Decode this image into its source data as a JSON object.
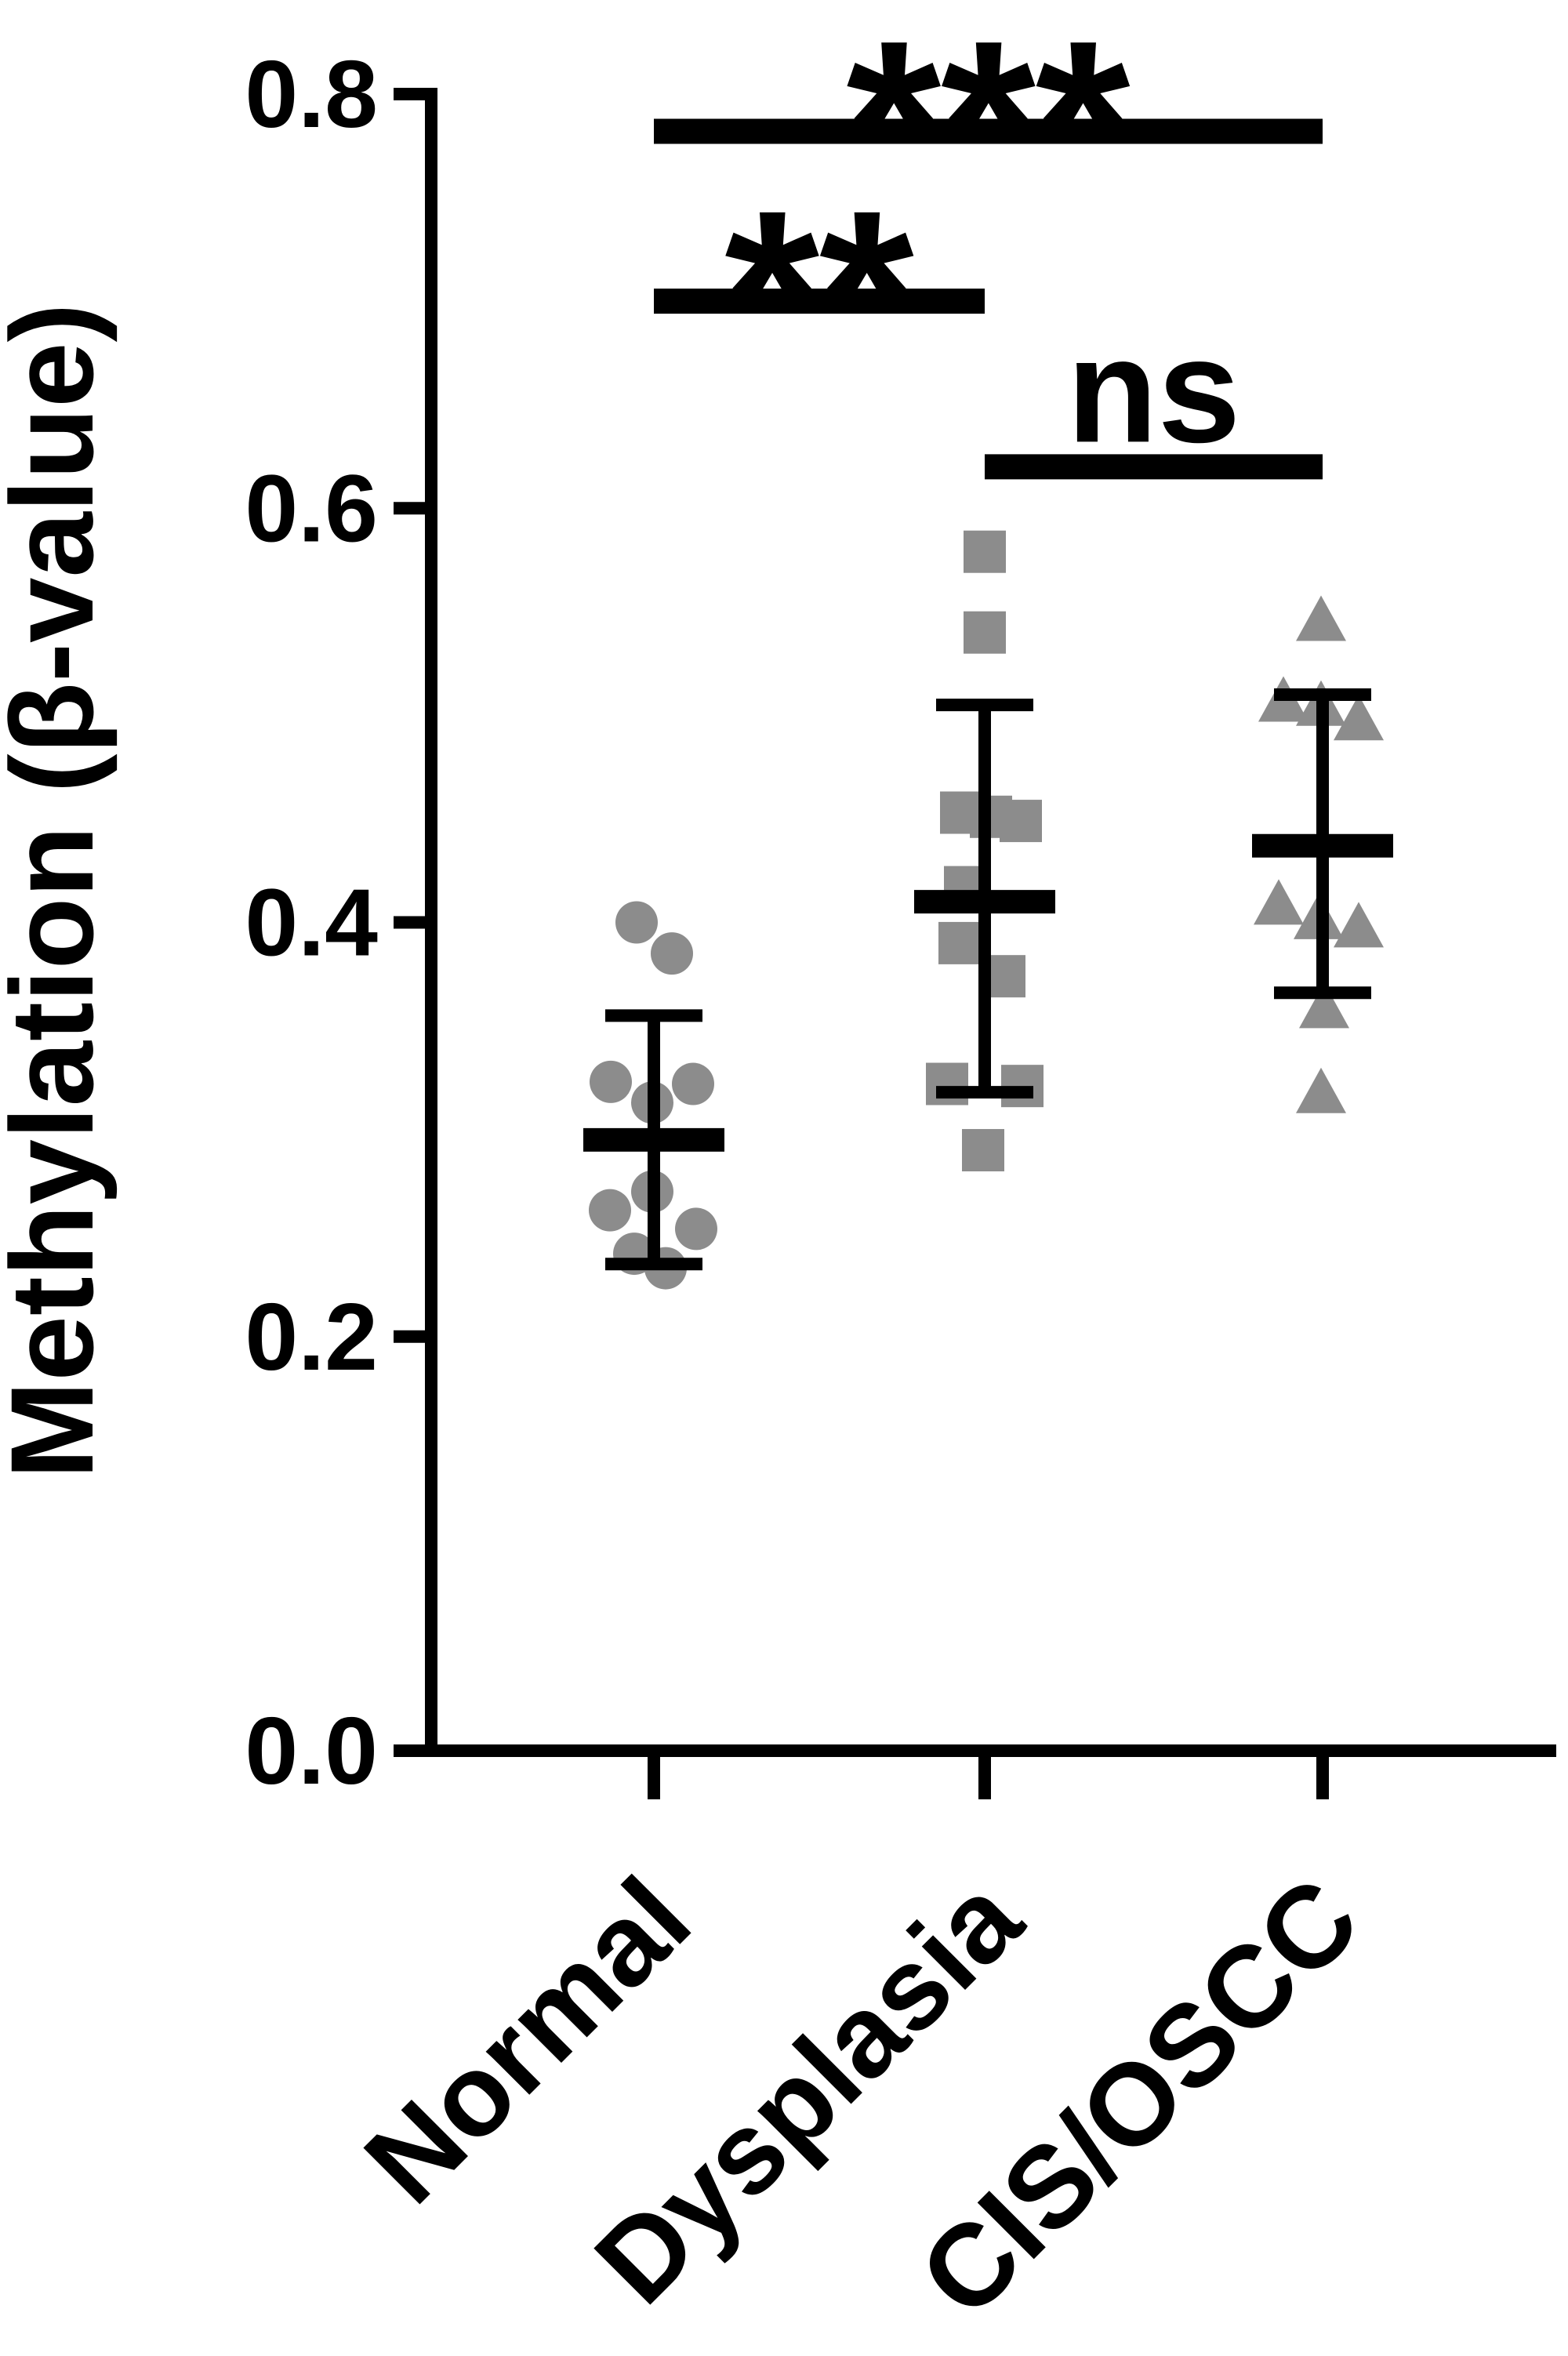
{
  "chart_data": {
    "type": "scatter",
    "title": "",
    "ylabel": "Methylation (β-value)",
    "xlabel": "",
    "ylim": [
      0.0,
      0.8
    ],
    "yticks": [
      0.0,
      0.2,
      0.4,
      0.6,
      0.8
    ],
    "ytick_format_decimals": 1,
    "categories": [
      "Normal",
      "Dysplasia",
      "CIS/OSCC"
    ],
    "legend": "none",
    "grid": false,
    "axis_color": "#000000",
    "marker_color": "#8c8c8c",
    "groups": [
      {
        "name": "Normal",
        "marker": "circle",
        "mean": 0.295,
        "sd_low": 0.235,
        "sd_high": 0.355,
        "points": [
          {
            "dx": -22,
            "v": 0.4
          },
          {
            "dx": 23,
            "v": 0.385
          },
          {
            "dx": -55,
            "v": 0.323
          },
          {
            "dx": 50,
            "v": 0.322
          },
          {
            "dx": -2,
            "v": 0.313
          },
          {
            "dx": -2,
            "v": 0.27
          },
          {
            "dx": -56,
            "v": 0.261
          },
          {
            "dx": 54,
            "v": 0.252
          },
          {
            "dx": -25,
            "v": 0.24
          },
          {
            "dx": 15,
            "v": 0.233
          }
        ]
      },
      {
        "name": "Dysplasia",
        "marker": "square",
        "mean": 0.41,
        "sd_low": 0.318,
        "sd_high": 0.505,
        "points": [
          {
            "dx": 0,
            "v": 0.579
          },
          {
            "dx": 0,
            "v": 0.54
          },
          {
            "dx": -30,
            "v": 0.453
          },
          {
            "dx": 8,
            "v": 0.451
          },
          {
            "dx": 46,
            "v": 0.449
          },
          {
            "dx": -25,
            "v": 0.417
          },
          {
            "dx": -32,
            "v": 0.39
          },
          {
            "dx": 25,
            "v": 0.374
          },
          {
            "dx": -48,
            "v": 0.322
          },
          {
            "dx": 48,
            "v": 0.321
          },
          {
            "dx": -2,
            "v": 0.29
          }
        ]
      },
      {
        "name": "CIS/OSCC",
        "marker": "triangle",
        "mean": 0.437,
        "sd_low": 0.366,
        "sd_high": 0.51,
        "points": [
          {
            "dx": -2,
            "v": 0.545
          },
          {
            "dx": -50,
            "v": 0.506
          },
          {
            "dx": -2,
            "v": 0.504
          },
          {
            "dx": 46,
            "v": 0.497
          },
          {
            "dx": -56,
            "v": 0.408
          },
          {
            "dx": -5,
            "v": 0.401
          },
          {
            "dx": 46,
            "v": 0.397
          },
          {
            "dx": 2,
            "v": 0.358
          },
          {
            "dx": -2,
            "v": 0.317
          }
        ]
      }
    ],
    "significance": [
      {
        "from": "Normal",
        "to": "CIS/OSCC",
        "label": "***",
        "y": 0.782
      },
      {
        "from": "Normal",
        "to": "Dysplasia",
        "label": "**",
        "y": 0.7
      },
      {
        "from": "Dysplasia",
        "to": "CIS/OSCC",
        "label": "ns",
        "y": 0.62
      }
    ]
  }
}
